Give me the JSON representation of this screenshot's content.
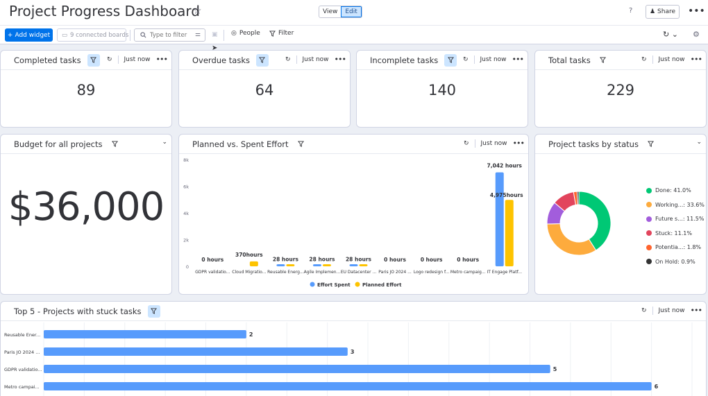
{
  "header": {
    "title": "Project Progress Dashboard",
    "view_label": "View",
    "edit_label": "Edit",
    "help": "?",
    "share_label": "Share"
  },
  "toolbar": {
    "add_widget_label": "Add widget",
    "boards_label": "9 connected boards",
    "search_placeholder": "Type to filter",
    "people_label": "People",
    "filter_label": "Filter"
  },
  "widgets": {
    "completed": {
      "title": "Completed tasks",
      "updated": "Just now",
      "value": "89"
    },
    "overdue": {
      "title": "Overdue tasks",
      "updated": "Just now",
      "value": "64"
    },
    "incomplete": {
      "title": "Incomplete tasks",
      "updated": "Just now",
      "value": "140"
    },
    "total": {
      "title": "Total tasks",
      "updated": "Just now",
      "value": "229"
    },
    "budget": {
      "title": "Budget for all projects",
      "value": "$36,000"
    },
    "effort": {
      "title": "Planned vs. Spent Effort",
      "updated": "Just now"
    },
    "status": {
      "title": "Project tasks by status"
    },
    "stuck": {
      "title": "Top 5 - Projects with stuck tasks",
      "updated": "Just now"
    }
  },
  "chart_data": [
    {
      "type": "bar",
      "title": "Planned vs. Spent Effort",
      "categories": [
        "GDPR validatio...",
        "Cloud Migratio...",
        "Reusable Energ...",
        "Agile Implemen...",
        "EU Datacenter ...",
        "Paris JO 2024 ...",
        "Logo redesign f...",
        "Metro campaig...",
        "IT Engage Platf..."
      ],
      "series": [
        {
          "name": "Effort Spent",
          "color": "#579bfc",
          "values": [
            0,
            0,
            28,
            28,
            28,
            0,
            0,
            0,
            7042
          ]
        },
        {
          "name": "Planned Effort",
          "color": "#fdc300",
          "values": [
            0,
            370,
            28,
            28,
            28,
            0,
            0,
            0,
            4975
          ]
        }
      ],
      "value_labels": [
        "0 hours",
        "370hours",
        "28 hours",
        "28 hours",
        "28 hours",
        "0 hours",
        "0 hours",
        "0 hours",
        "7,042 hours"
      ],
      "extra_label": "4,975hours",
      "yticks": [
        "0",
        "2k",
        "4k",
        "6k",
        "8k"
      ],
      "ylim": [
        0,
        8000
      ]
    },
    {
      "type": "pie",
      "title": "Project tasks by status",
      "slices": [
        {
          "label": "Done: 41.0%",
          "value": 41.0,
          "color": "#00c875"
        },
        {
          "label": "Working...: 33.6%",
          "value": 33.6,
          "color": "#fdab3d"
        },
        {
          "label": "Future s...: 11.5%",
          "value": 11.5,
          "color": "#a25ddc"
        },
        {
          "label": "Stuck: 11.1%",
          "value": 11.1,
          "color": "#e2445c"
        },
        {
          "label": "Potentia...: 1.8%",
          "value": 1.8,
          "color": "#ff642e"
        },
        {
          "label": "On Hold: 0.9%",
          "value": 0.9,
          "color": "#333333"
        }
      ]
    },
    {
      "type": "bar",
      "orientation": "horizontal",
      "title": "Top 5 - Projects with stuck tasks",
      "categories": [
        "Reusable Ener...",
        "Paris JO 2024 ...",
        "GDPR validatio...",
        "Metro campai..."
      ],
      "values": [
        2,
        3,
        5,
        6
      ],
      "color": "#579bfc",
      "xlim": [
        0,
        6.4
      ]
    }
  ]
}
